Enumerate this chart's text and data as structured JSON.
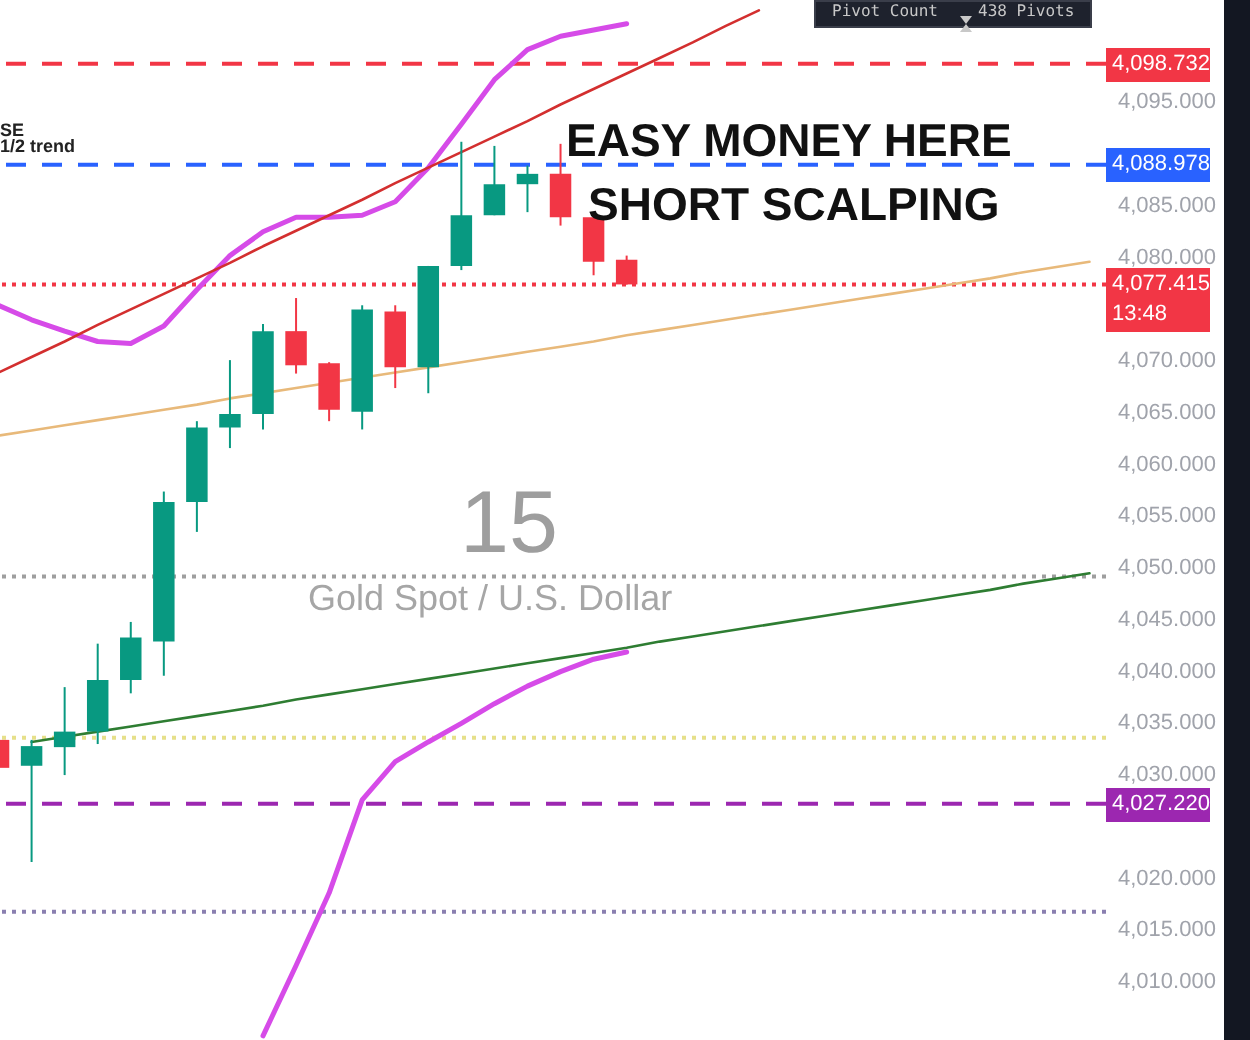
{
  "chart_data": {
    "type": "candlestick",
    "tick_labels": "y",
    "categories": [
      null,
      null,
      null,
      null,
      null,
      null,
      null,
      null,
      null,
      null,
      null,
      null,
      null,
      null,
      null,
      null,
      null,
      null,
      null,
      null,
      null,
      null,
      null,
      null,
      null,
      null,
      null,
      null,
      null,
      null,
      null,
      null,
      null,
      null
    ],
    "ohlc": [
      [
        4033.4,
        4034,
        4030.5,
        4030.7
      ],
      [
        4030.9,
        4033.4,
        4021.6,
        4032.8
      ],
      [
        4032.7,
        4038.5,
        4030.0,
        4034.2
      ],
      [
        4034.2,
        4042.7,
        4033.0,
        4039.2
      ],
      [
        4039.2,
        4044.8,
        4037.9,
        4043.3
      ],
      [
        4042.9,
        4057.4,
        4039.6,
        4056.4
      ],
      [
        4056.4,
        4064.2,
        4053.5,
        4063.6
      ],
      [
        4063.6,
        4070.1,
        4061.6,
        4064.9
      ],
      [
        4064.9,
        4073.6,
        4063.4,
        4072.9
      ],
      [
        4072.9,
        4076.1,
        4068.8,
        4069.6
      ],
      [
        4069.8,
        4069.9,
        4064.2,
        4065.3
      ],
      [
        4065.1,
        4075.4,
        4063.4,
        4075.0
      ],
      [
        4074.8,
        4075.4,
        4067.4,
        4069.4
      ],
      [
        4069.4,
        4079.2,
        4066.9,
        4079.2
      ],
      [
        4079.2,
        4091.2,
        4078.8,
        4084.1
      ],
      [
        4084.1,
        4090.8,
        4084.1,
        4087.1
      ],
      [
        4087.1,
        4088.9,
        4084.4,
        4088.1
      ],
      [
        4088.1,
        4091.0,
        4083.1,
        4083.9
      ],
      [
        4083.9,
        4083.9,
        4078.3,
        4079.6
      ],
      [
        4079.8,
        4080.2,
        4077.4,
        4077.415
      ],
      null,
      null,
      null,
      null,
      null,
      null,
      null,
      null,
      null,
      null,
      null,
      null,
      null,
      null
    ],
    "colors": [
      "#f23645",
      "#089981",
      "#089981",
      "#089981",
      "#089981",
      "#089981",
      "#089981",
      "#089981",
      "#089981",
      "#f23645",
      "#f23645",
      "#089981",
      "#f23645",
      "#089981",
      "#089981",
      "#089981",
      "#089981",
      "#f23645",
      "#f23645",
      "#f23645",
      null,
      null,
      null,
      null,
      null,
      null,
      null,
      null,
      null,
      null,
      null,
      null,
      null,
      null
    ],
    "series": [
      {
        "type": "line",
        "color": "#d64be8",
        "values": [
          4075.4,
          4074.0,
          4072.9,
          4071.9,
          4071.7,
          4073.4,
          4076.9,
          4080.2,
          4082.5,
          4083.9,
          4083.9,
          4084.1,
          4085.4,
          4088.7,
          4092.9,
          4097.2,
          4100.1,
          4101.4,
          4102.0,
          4102.6,
          null,
          null,
          null,
          null,
          null,
          null,
          null,
          null,
          null,
          null,
          null,
          null,
          null,
          null
        ]
      },
      {
        "type": "line",
        "color": "#d64be8",
        "values": [
          null,
          null,
          null,
          null,
          null,
          null,
          null,
          null,
          4004.8,
          4011.6,
          4018.6,
          4027.6,
          4031.3,
          4033.2,
          4035.0,
          4036.9,
          4038.6,
          4040.0,
          4041.2,
          4041.9,
          null,
          null,
          null,
          null,
          null,
          null,
          null,
          null,
          null,
          null,
          null,
          null,
          null,
          null
        ]
      },
      {
        "type": "line",
        "color": "#d32f2f",
        "values": [
          4068.9,
          4070.4,
          4071.9,
          4073.5,
          4075.0,
          4076.5,
          4078.0,
          4079.5,
          4081.1,
          4082.6,
          4084.1,
          4085.6,
          4087.2,
          4088.7,
          4090.2,
          4091.7,
          4093.2,
          4094.8,
          4096.3,
          4097.8,
          4099.3,
          4100.8,
          4102.4,
          4103.9,
          null,
          null,
          null,
          null,
          null,
          null,
          null,
          null,
          null,
          null
        ]
      },
      {
        "type": "line",
        "color": "#e8b97a",
        "values": [
          4062.8,
          4063.3,
          4063.8,
          4064.3,
          4064.8,
          4065.3,
          4065.8,
          4066.4,
          null,
          4067.4,
          null,
          null,
          4068.9,
          4069.4,
          4069.9,
          4070.4,
          4070.9,
          4071.4,
          4071.9,
          4072.5,
          4073.0,
          4073.5,
          4074.0,
          4074.5,
          4075.0,
          4075.5,
          4076.0,
          4076.5,
          4077.0,
          4077.5,
          4078.0,
          4078.6,
          4079.1,
          4079.6
        ]
      },
      {
        "type": "line",
        "color": "#2e7d32",
        "values": [
          null,
          4033.2,
          4033.7,
          4034.2,
          4034.7,
          4035.2,
          4035.7,
          4036.2,
          4036.7,
          4037.3,
          4037.8,
          4038.3,
          4038.8,
          4039.3,
          4039.8,
          4040.3,
          4040.8,
          4041.3,
          4041.8,
          4042.3,
          4042.9,
          4043.4,
          4043.9,
          4044.4,
          4044.9,
          4045.4,
          4045.9,
          4046.4,
          4046.9,
          4047.4,
          4047.9,
          4048.5,
          4049.0,
          4049.5
        ]
      }
    ],
    "ylim": [
      4004.4,
      4104.9
    ],
    "yticks": [
      {
        "value": 4010,
        "label": "4,010.000"
      },
      {
        "value": 4015,
        "label": "4,015.000"
      },
      {
        "value": 4020,
        "label": "4,020.000"
      },
      {
        "value": 4030,
        "label": "4,030.000"
      },
      {
        "value": 4035,
        "label": "4,035.000"
      },
      {
        "value": 4040,
        "label": "4,040.000"
      },
      {
        "value": 4045,
        "label": "4,045.000"
      },
      {
        "value": 4050,
        "label": "4,050.000"
      },
      {
        "value": 4055,
        "label": "4,055.000"
      },
      {
        "value": 4060,
        "label": "4,060.000"
      },
      {
        "value": 4065,
        "label": "4,065.000"
      },
      {
        "value": 4070,
        "label": "4,070.000"
      },
      {
        "value": 4080,
        "label": "4,080.000"
      },
      {
        "value": 4085,
        "label": "4,085.000"
      },
      {
        "value": 4095,
        "label": "4,095.000"
      }
    ],
    "ref_lines": [
      {
        "axis": "y",
        "value": 4098.732,
        "label": "4,098.732",
        "color": "#f23645",
        "line_style": "dashed"
      },
      {
        "axis": "y",
        "value": 4088.978,
        "label": "4,088.978",
        "color": "#2962ff",
        "line_style": "dashed"
      },
      {
        "axis": "y",
        "value": 4077.415,
        "label": "4,077.415\n13:48",
        "color": "#f23645",
        "line_style": "dotted"
      },
      {
        "axis": "y",
        "value": 4049.2,
        "color": "#9e9e9e",
        "line_style": "dotted"
      },
      {
        "axis": "y",
        "value": 4033.6,
        "color": "#e6e08a",
        "line_style": "dotted"
      },
      {
        "axis": "y",
        "value": 4027.22,
        "label": "4,027.220",
        "color": "#9c27b0",
        "line_style": "dashed"
      },
      {
        "axis": "y",
        "value": 4016.8,
        "color": "#8a7fb0",
        "line_style": "dotted"
      }
    ],
    "annotations": [
      "EASY MONEY HERE",
      "SHORT SCALPING",
      "15",
      "Gold Spot / U.S. Dollar",
      "SE",
      "1/2 trend",
      "Pivot Count",
      "438 Pivots"
    ]
  }
}
